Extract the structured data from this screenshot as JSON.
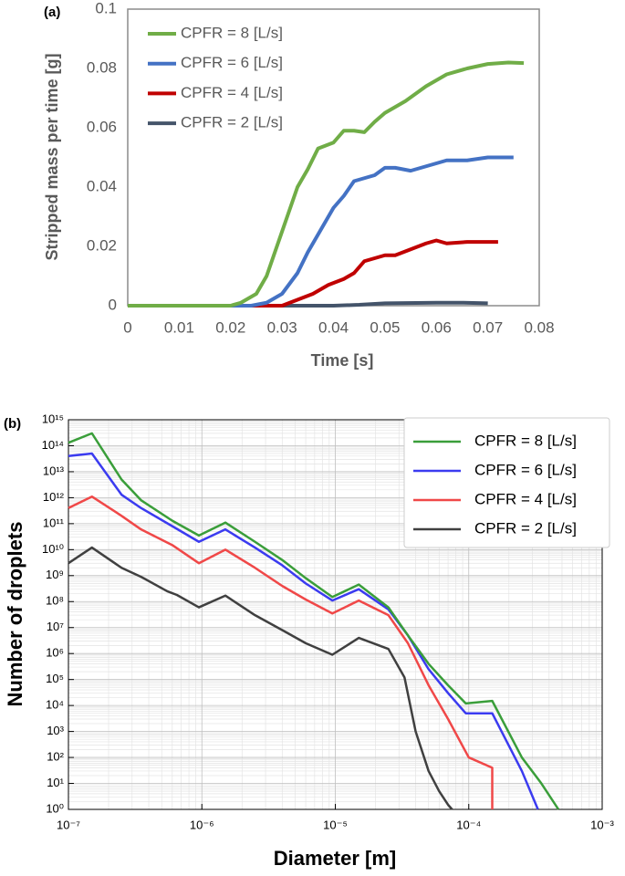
{
  "chart_data": [
    {
      "type": "line",
      "label": "(a)",
      "x_label": "Time [s]",
      "y_label": "Stripped mass per time [g]",
      "xlim": [
        0,
        0.08
      ],
      "xticks": [
        0,
        0.01,
        0.02,
        0.03,
        0.04,
        0.05,
        0.06,
        0.07,
        0.08
      ],
      "ylim": [
        0,
        0.1
      ],
      "yticks": [
        0,
        0.02,
        0.04,
        0.06,
        0.08,
        0.1
      ],
      "grid": false,
      "legend": "upper left",
      "series": [
        {
          "name": "CPFR = 8 [L/s]",
          "color": "#70ad47",
          "x": [
            0,
            0.02,
            0.022,
            0.025,
            0.027,
            0.029,
            0.031,
            0.033,
            0.035,
            0.037,
            0.04,
            0.042,
            0.044,
            0.046,
            0.048,
            0.05,
            0.054,
            0.058,
            0.062,
            0.066,
            0.07,
            0.074,
            0.077
          ],
          "values": [
            0,
            0,
            0.001,
            0.004,
            0.01,
            0.02,
            0.03,
            0.04,
            0.046,
            0.053,
            0.055,
            0.059,
            0.059,
            0.0585,
            0.062,
            0.065,
            0.069,
            0.074,
            0.078,
            0.08,
            0.0815,
            0.082,
            0.0818
          ]
        },
        {
          "name": "CPFR = 6 [L/s]",
          "color": "#4472c4",
          "x": [
            0,
            0.024,
            0.027,
            0.03,
            0.033,
            0.035,
            0.037,
            0.04,
            0.042,
            0.044,
            0.046,
            0.048,
            0.05,
            0.052,
            0.055,
            0.058,
            0.062,
            0.066,
            0.07,
            0.075
          ],
          "values": [
            0,
            0,
            0.001,
            0.004,
            0.011,
            0.018,
            0.024,
            0.033,
            0.037,
            0.042,
            0.043,
            0.044,
            0.0465,
            0.0465,
            0.0455,
            0.047,
            0.049,
            0.049,
            0.05,
            0.05
          ]
        },
        {
          "name": "CPFR = 4 [L/s]",
          "color": "#c00000",
          "x": [
            0,
            0.03,
            0.033,
            0.036,
            0.039,
            0.042,
            0.044,
            0.046,
            0.048,
            0.05,
            0.052,
            0.055,
            0.058,
            0.06,
            0.062,
            0.066,
            0.07,
            0.072
          ],
          "values": [
            0,
            0,
            0.002,
            0.004,
            0.007,
            0.009,
            0.011,
            0.015,
            0.016,
            0.017,
            0.017,
            0.019,
            0.021,
            0.022,
            0.021,
            0.0215,
            0.0215,
            0.0215
          ]
        },
        {
          "name": "CPFR = 2 [L/s]",
          "color": "#44546a",
          "x": [
            0,
            0.04,
            0.045,
            0.05,
            0.06,
            0.065,
            0.07
          ],
          "values": [
            0,
            0,
            0.0003,
            0.0008,
            0.001,
            0.001,
            0.0008
          ]
        }
      ]
    },
    {
      "type": "line",
      "label": "(b)",
      "x_label": "Diameter [m]",
      "y_label": "Number of droplets",
      "xscale": "log",
      "yscale": "log",
      "xlim": [
        1e-07,
        0.001
      ],
      "xticks": [
        {
          "value": 1e-07,
          "label": "10⁻⁷"
        },
        {
          "value": 1e-06,
          "label": "10⁻⁶"
        },
        {
          "value": 1e-05,
          "label": "10⁻⁵"
        },
        {
          "value": 0.0001,
          "label": "10⁻⁴"
        },
        {
          "value": 0.001,
          "label": "10⁻³"
        }
      ],
      "ylim": [
        1,
        1000000000000000.0
      ],
      "yticks": [
        {
          "value": 1,
          "label": "10⁰"
        },
        {
          "value": 10,
          "label": "10¹"
        },
        {
          "value": 100,
          "label": "10²"
        },
        {
          "value": 1000,
          "label": "10³"
        },
        {
          "value": 10000,
          "label": "10⁴"
        },
        {
          "value": 100000,
          "label": "10⁵"
        },
        {
          "value": 1000000,
          "label": "10⁶"
        },
        {
          "value": 10000000,
          "label": "10⁷"
        },
        {
          "value": 100000000,
          "label": "10⁸"
        },
        {
          "value": 1000000000,
          "label": "10⁹"
        },
        {
          "value": 10000000000,
          "label": "10¹⁰"
        },
        {
          "value": 100000000000,
          "label": "10¹¹"
        },
        {
          "value": 1000000000000,
          "label": "10¹²"
        },
        {
          "value": 10000000000000,
          "label": "10¹³"
        },
        {
          "value": 100000000000000,
          "label": "10¹⁴"
        },
        {
          "value": 1000000000000000,
          "label": "10¹⁵"
        }
      ],
      "grid": true,
      "minor_grid": true,
      "legend": "upper right",
      "series": [
        {
          "name": "CPFR = 8 [L/s]",
          "color": "#3a9e3a",
          "x": [
            1e-07,
            1.5e-07,
            2.5e-07,
            3.5e-07,
            6e-07,
            9.5e-07,
            1.5e-06,
            2.5e-06,
            4e-06,
            6e-06,
            9.5e-06,
            1.5e-05,
            2.5e-05,
            3.5e-05,
            5e-05,
            7e-05,
            9.5e-05,
            0.00015,
            0.00025,
            0.00035,
            0.00047
          ],
          "values": [
            130000000000000.0,
            300000000000000.0,
            5000000000000.0,
            800000000000.0,
            130000000000.0,
            35000000000.0,
            110000000000.0,
            20000000000.0,
            4000000000.0,
            800000000.0,
            150000000.0,
            450000000.0,
            60000000.0,
            5000000.0,
            400000,
            60000,
            12000,
            15000,
            100,
            10,
            1
          ]
        },
        {
          "name": "CPFR = 6 [L/s]",
          "color": "#3b3bf0",
          "x": [
            1e-07,
            1.5e-07,
            2.5e-07,
            3.5e-07,
            6e-07,
            9.5e-07,
            1.5e-06,
            2.5e-06,
            4e-06,
            6e-06,
            9.5e-06,
            1.5e-05,
            2.5e-05,
            3.5e-05,
            5e-05,
            7e-05,
            9.5e-05,
            0.00015,
            0.00025,
            0.00033
          ],
          "values": [
            40000000000000.0,
            50000000000000.0,
            1300000000000.0,
            400000000000.0,
            80000000000.0,
            20000000000.0,
            60000000000.0,
            12000000000.0,
            2500000000.0,
            500000000.0,
            110000000.0,
            300000000.0,
            50000000.0,
            5000000.0,
            250000,
            30000,
            5000,
            5000,
            30,
            1
          ]
        },
        {
          "name": "CPFR = 4 [L/s]",
          "color": "#f04848",
          "x": [
            1e-07,
            1.5e-07,
            2.5e-07,
            3.5e-07,
            6e-07,
            9.5e-07,
            1.5e-06,
            2.5e-06,
            4e-06,
            6e-06,
            9.5e-06,
            1.5e-05,
            2.5e-05,
            3.5e-05,
            5e-05,
            7e-05,
            0.0001,
            0.00015,
            0.00015
          ],
          "values": [
            400000000000.0,
            1100000000000.0,
            200000000000.0,
            60000000000.0,
            15000000000.0,
            3000000000.0,
            10000000000.0,
            2000000000.0,
            400000000.0,
            120000000.0,
            35000000.0,
            110000000.0,
            30000000.0,
            2500000.0,
            60000,
            3000,
            100,
            40,
            1
          ]
        },
        {
          "name": "CPFR = 2 [L/s]",
          "color": "#404040",
          "x": [
            1e-07,
            1.5e-07,
            2.5e-07,
            3.5e-07,
            5.5e-07,
            6.5e-07,
            9.5e-07,
            1.5e-06,
            2.5e-06,
            4e-06,
            6e-06,
            9.5e-06,
            1.5e-05,
            2.5e-05,
            3.3e-05,
            4e-05,
            5e-05,
            6e-05,
            7e-05,
            7.5e-05
          ],
          "values": [
            3000000000.0,
            12000000000.0,
            2000000000.0,
            900000000.0,
            250000000.0,
            180000000.0,
            60000000.0,
            170000000.0,
            30000000.0,
            8000000.0,
            2500000.0,
            900000,
            4000000.0,
            1500000.0,
            120000,
            1000,
            30,
            5,
            1.5,
            1
          ]
        }
      ]
    }
  ]
}
